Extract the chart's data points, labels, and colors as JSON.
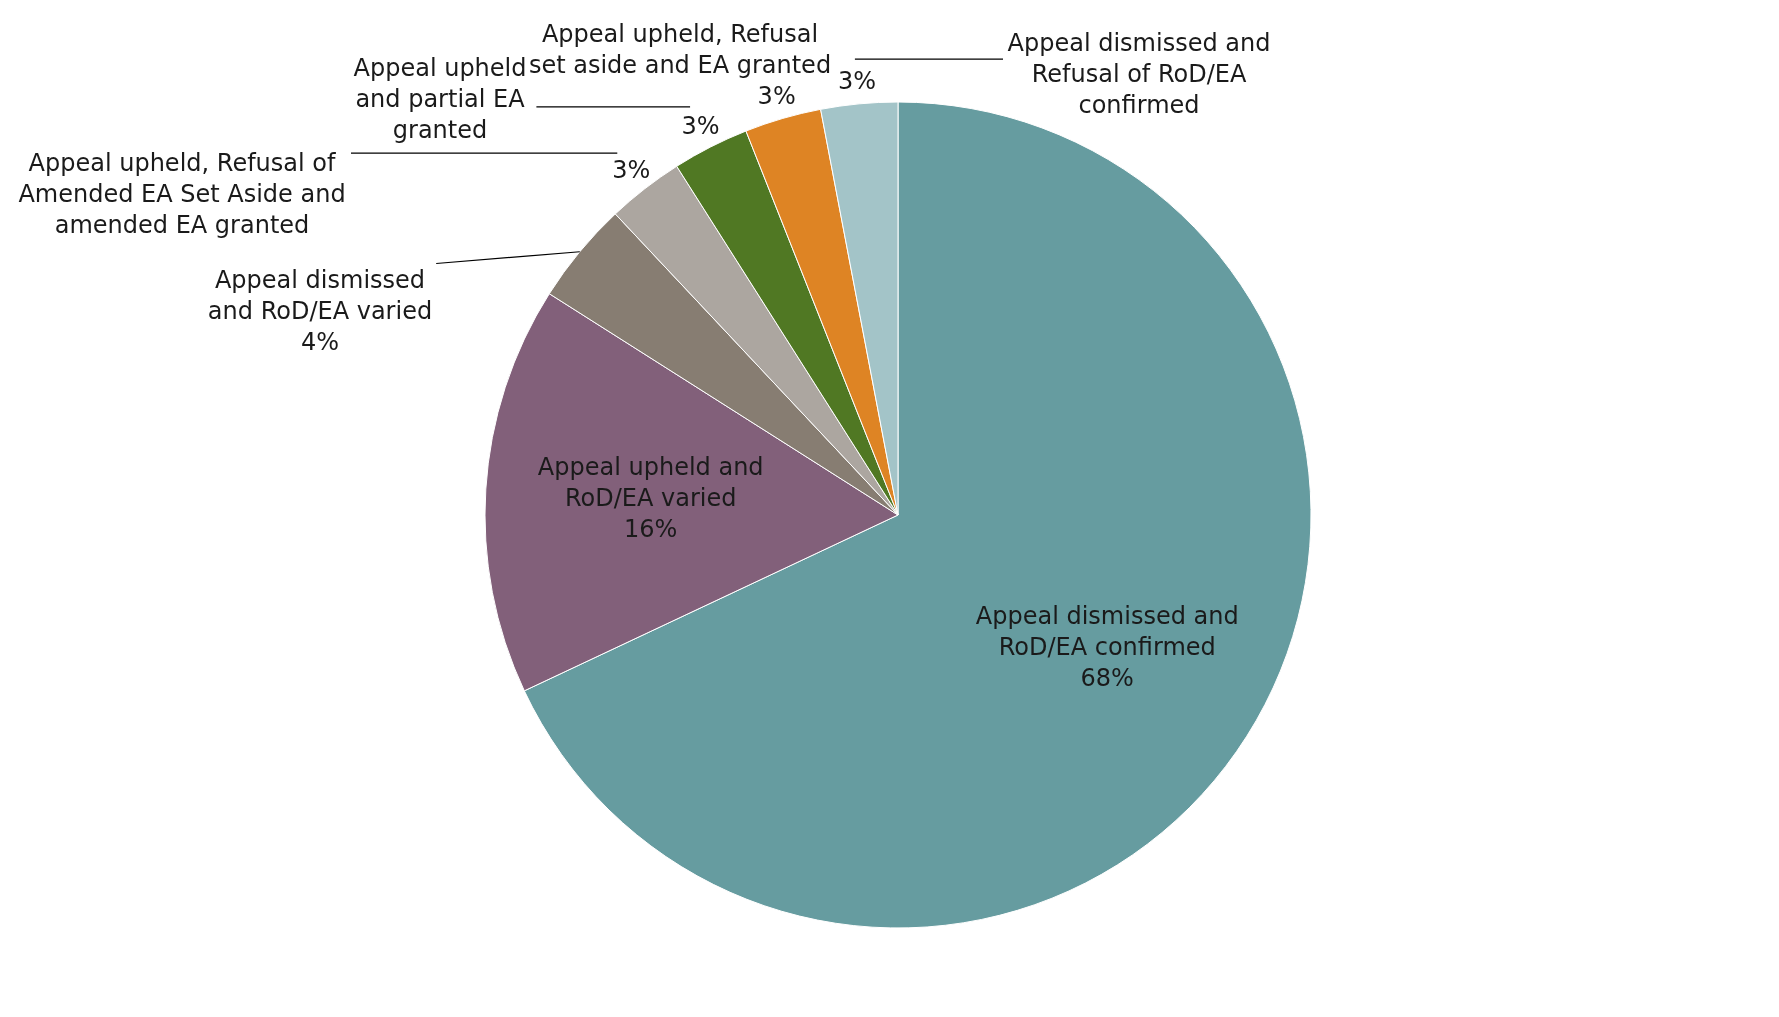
{
  "chart_data": {
    "type": "pie",
    "categories": [
      "Appeal dismissed and RoD/EA confirmed",
      "Appeal upheld and RoD/EA varied",
      "Appeal dismissed and RoD/EA varied",
      "Appeal upheld, Refusal of Amended EA Set Aside and amended EA granted",
      "Appeal upheld and partial EA granted",
      "Appeal upheld, Refusal set aside and EA granted",
      "Appeal dismissed and Refusal of RoD/EA confirmed"
    ],
    "values": [
      68,
      16,
      4,
      3,
      3,
      3,
      3
    ],
    "colors": [
      "#669ca0",
      "#82607a",
      "#877d72",
      "#aca6a0",
      "#507823",
      "#de8424",
      "#a3c4c8"
    ],
    "value_labels": [
      "68%",
      "16%",
      "4%",
      "3%",
      "3%",
      "3%",
      "3%"
    ]
  }
}
